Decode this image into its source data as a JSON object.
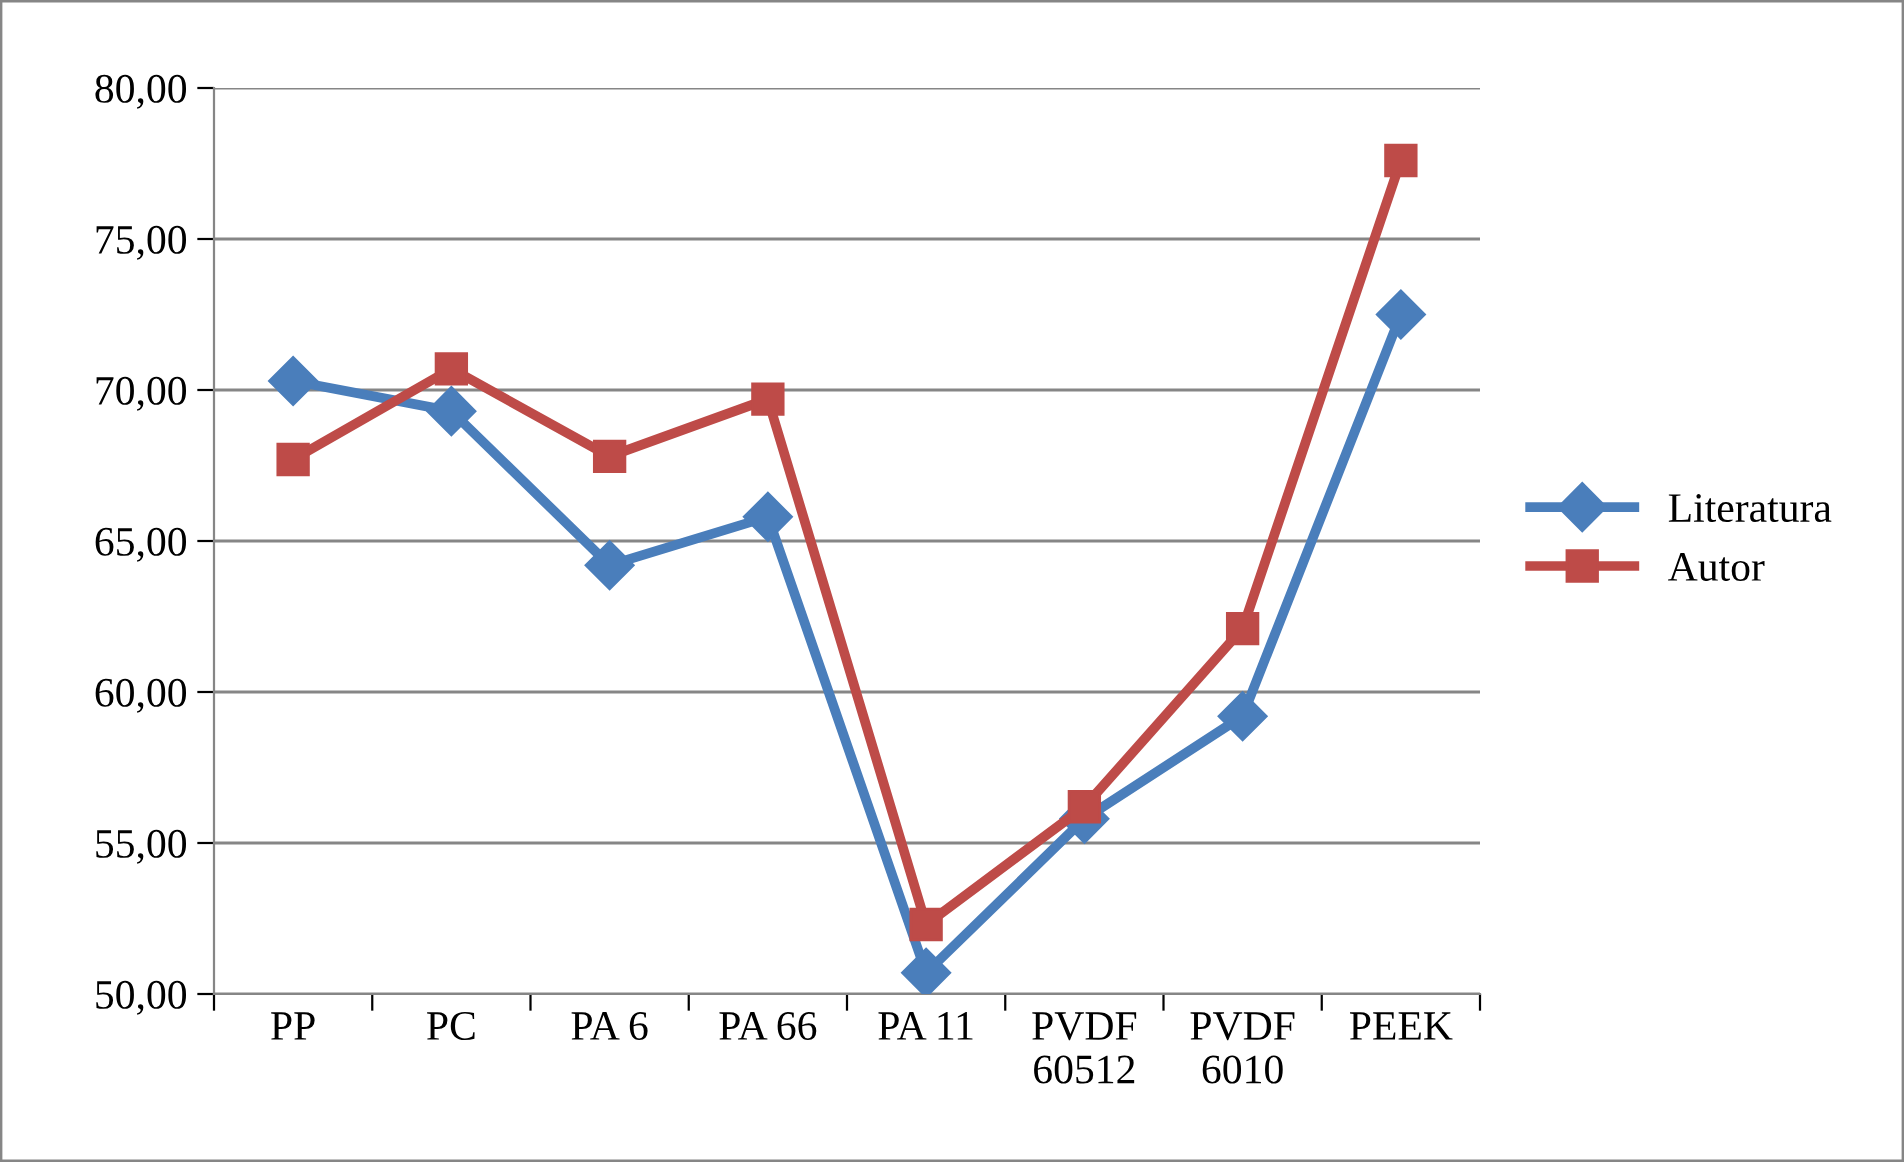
{
  "chart_data": {
    "type": "line",
    "categories": [
      "PP",
      "PC",
      "PA 6",
      "PA 66",
      "PA 11",
      "PVDF\n60512",
      "PVDF\n6010",
      "PEEK"
    ],
    "series": [
      {
        "name": "Literatura",
        "color": "#4a7ebb",
        "marker": "diamond",
        "values": [
          70.3,
          69.3,
          64.2,
          65.8,
          50.7,
          55.8,
          59.2,
          72.5
        ]
      },
      {
        "name": "Autor",
        "color": "#be4b48",
        "marker": "square",
        "values": [
          67.7,
          70.7,
          67.8,
          69.7,
          52.3,
          56.2,
          62.1,
          77.6
        ]
      }
    ],
    "ylim": [
      50,
      80
    ],
    "yticks": [
      {
        "value": 50,
        "label": "50,00"
      },
      {
        "value": 55,
        "label": "55,00"
      },
      {
        "value": 60,
        "label": "60,00"
      },
      {
        "value": 65,
        "label": "65,00"
      },
      {
        "value": 70,
        "label": "70,00"
      },
      {
        "value": 75,
        "label": "75,00"
      },
      {
        "value": 80,
        "label": "80,00"
      }
    ],
    "grid": "y",
    "legend": "right",
    "line_style": "solid"
  }
}
